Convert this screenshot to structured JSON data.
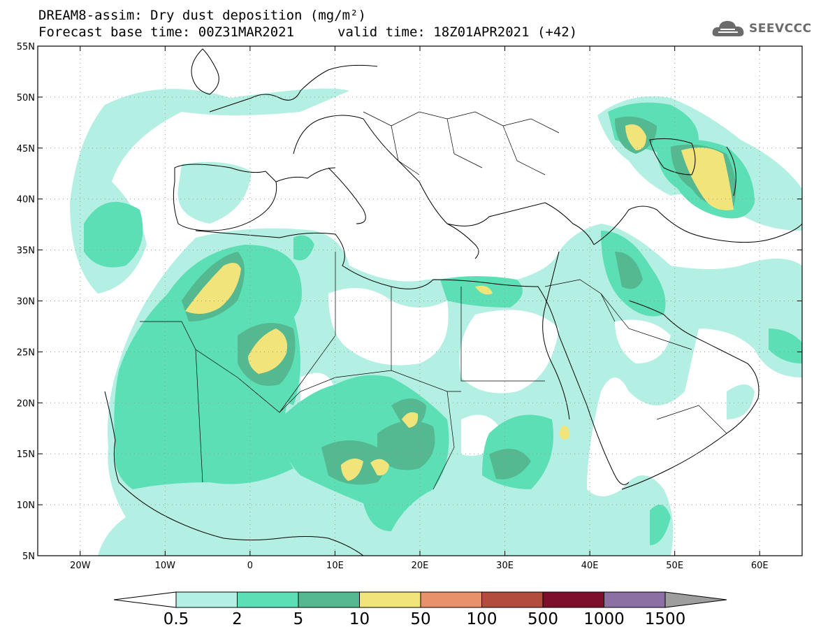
{
  "header": {
    "title": "DREAM8-assim: Dry dust deposition (mg/m²)",
    "base_time": "Forecast base time: 00Z31MAR2021",
    "valid_time": "valid time: 18Z01APR2021 (+42)"
  },
  "logo": {
    "text": "SEEVCCC",
    "icon": "cloud-icon"
  },
  "map": {
    "lat_labels": [
      "55N",
      "50N",
      "45N",
      "40N",
      "35N",
      "30N",
      "25N",
      "20N",
      "15N",
      "10N",
      "5N"
    ],
    "lon_labels": [
      "20W",
      "10W",
      "0",
      "10E",
      "20E",
      "30E",
      "40E",
      "50E",
      "60E"
    ],
    "lat_range": [
      5,
      55
    ],
    "lon_range": [
      -25,
      65
    ],
    "grid": true
  },
  "colorbar": {
    "labels": [
      "0.5",
      "2",
      "5",
      "10",
      "50",
      "100",
      "500",
      "1000",
      "1500"
    ],
    "colors": [
      "#b4efe4",
      "#5ddfb6",
      "#54b891",
      "#f0e47a",
      "#e8916a",
      "#b24d3e",
      "#7d0f2a",
      "#8c6fa3"
    ],
    "under_color": "#ffffff",
    "over_color": "#9e9e9e"
  }
}
